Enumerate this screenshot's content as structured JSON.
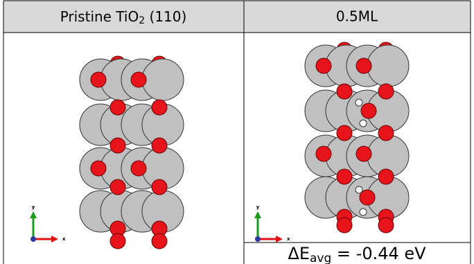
{
  "table": {
    "header": [
      {
        "text": "Pristine TiO",
        "sub": "2",
        "after": " (110)"
      },
      {
        "text": "0.5ML"
      }
    ],
    "axes": [
      {
        "y": "y",
        "x": "x"
      },
      {
        "y": "y",
        "x": "x"
      }
    ],
    "footer": {
      "text": "ΔE",
      "sub": "avg",
      "after": " = -0.44 eV"
    }
  }
}
